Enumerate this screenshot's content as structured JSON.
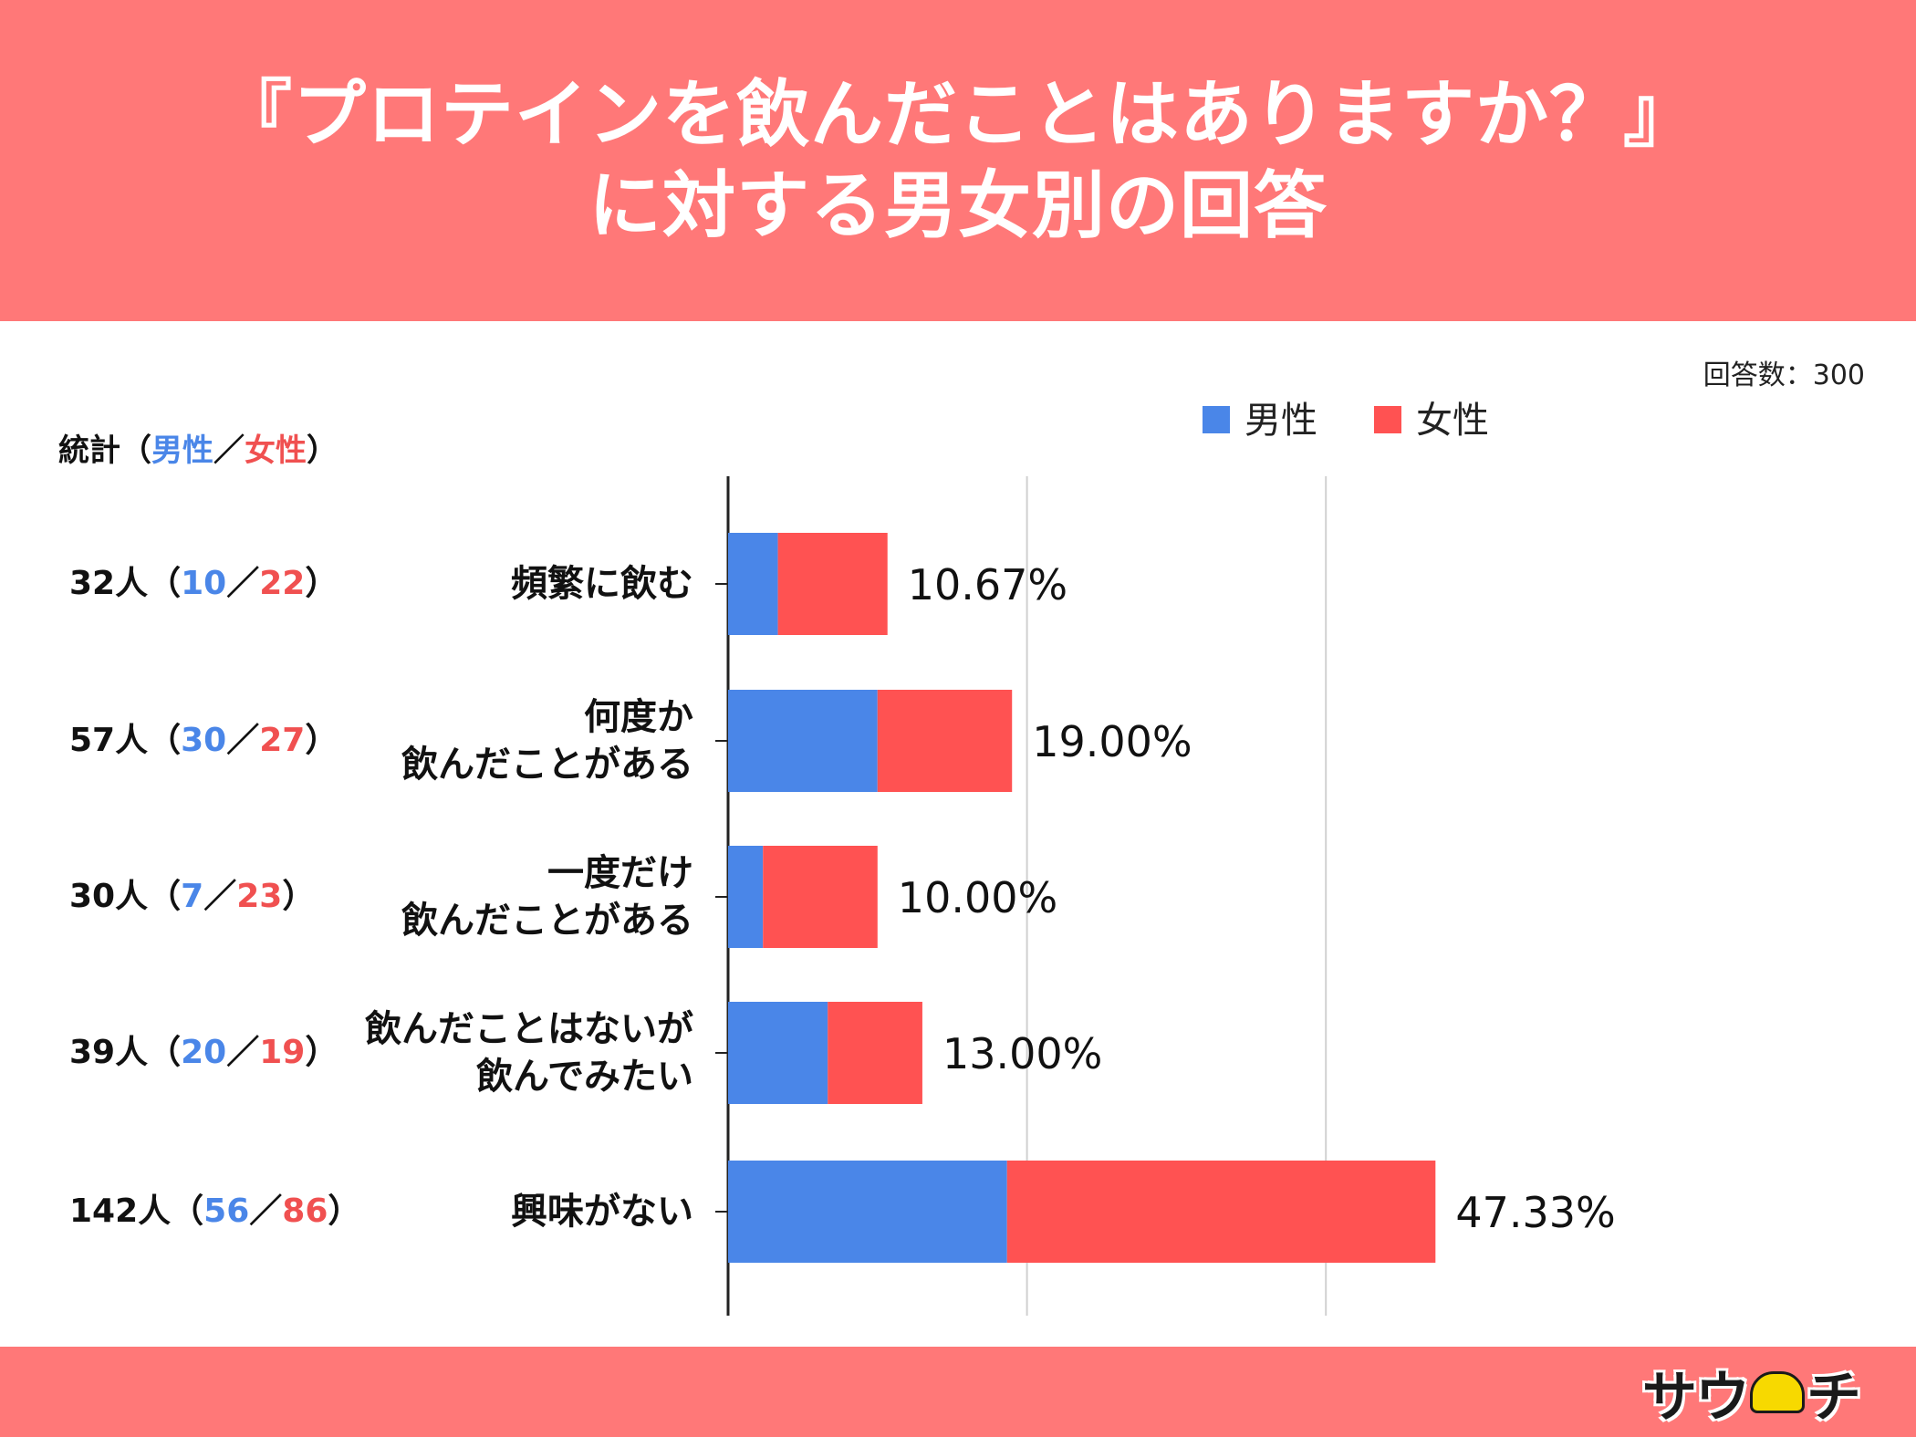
{
  "header": {
    "title_line1": "『プロテインを飲んだことはありますか？』",
    "title_line2": "に対する男女別の回答"
  },
  "respondents": "回答数：300",
  "stats_heading": {
    "prefix": "統計（",
    "male": "男性",
    "slash": "／",
    "female": "女性",
    "suffix": "）"
  },
  "legend": {
    "male": "男性",
    "female": "女性"
  },
  "colors": {
    "male": "#4a86e8",
    "female": "#ff5252",
    "header": "#ff7878"
  },
  "rows": [
    {
      "label_lines": [
        "頻繁に飲む"
      ],
      "total": "32人",
      "male": "10",
      "female": "22",
      "pct": "10.67%"
    },
    {
      "label_lines": [
        "何度か",
        "飲んだことがある"
      ],
      "total": "57人",
      "male": "30",
      "female": "27",
      "pct": "19.00%"
    },
    {
      "label_lines": [
        "一度だけ",
        "飲んだことがある"
      ],
      "total": "30人",
      "male": "7",
      "female": "23",
      "pct": "10.00%"
    },
    {
      "label_lines": [
        "飲んだことはないが",
        "飲んでみたい"
      ],
      "total": "39人",
      "male": "20",
      "female": "19",
      "pct": "13.00%"
    },
    {
      "label_lines": [
        "興味がない"
      ],
      "total": "142人",
      "male": "56",
      "female": "86",
      "pct": "47.33%"
    }
  ],
  "chart_data": {
    "type": "bar",
    "orientation": "horizontal",
    "stacked": true,
    "categories": [
      "頻繁に飲む",
      "何度か飲んだことがある",
      "一度だけ飲んだことがある",
      "飲んだことはないが飲んでみたい",
      "興味がない"
    ],
    "series": [
      {
        "name": "男性",
        "values": [
          10,
          30,
          7,
          20,
          56
        ]
      },
      {
        "name": "女性",
        "values": [
          22,
          27,
          23,
          19,
          86
        ]
      }
    ],
    "data_labels": [
      "10.67%",
      "19.00%",
      "10.00%",
      "13.00%",
      "47.33%"
    ],
    "xlim": [
      0,
      165
    ],
    "gridlines": [
      0,
      60,
      120
    ],
    "legend_position": "top-right"
  },
  "logo": {
    "text_left": "サウ",
    "text_right": "チ"
  }
}
